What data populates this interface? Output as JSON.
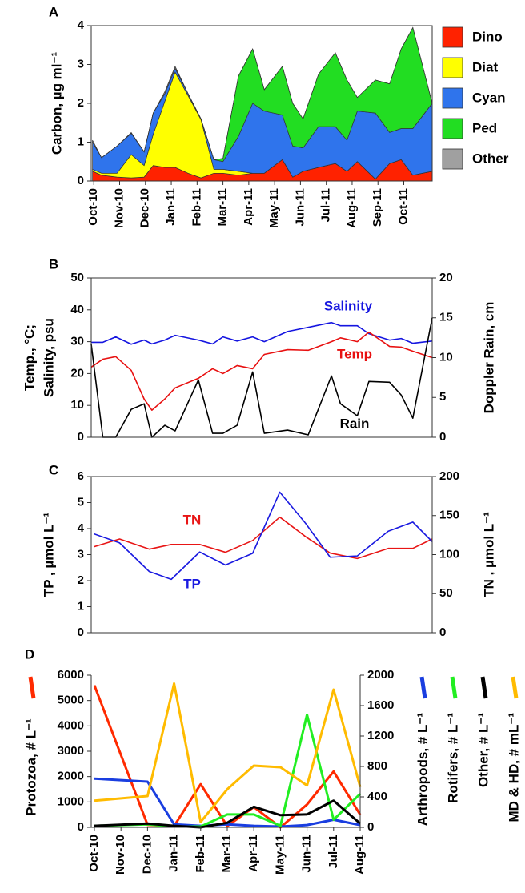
{
  "chart_data": [
    {
      "type": "area",
      "stacked": true,
      "title": "A",
      "y_label": "Carbon, µg ml⁻¹",
      "legend": "right",
      "x": [
        -0.05,
        0.3,
        0.9,
        1.45,
        1.95,
        2.3,
        2.75,
        3.15,
        3.65,
        4.15,
        4.65,
        5.0,
        5.6,
        6.15,
        6.6,
        7.3,
        7.7,
        8.1,
        8.7,
        9.35,
        9.8,
        10.2,
        10.9,
        11.45,
        11.9,
        12.35,
        13.1
      ],
      "xlim": [
        -0.1,
        13.1
      ],
      "xticks": [
        {
          "value": 0,
          "label": "Oct-10"
        },
        {
          "value": 1,
          "label": "Nov-10"
        },
        {
          "value": 2,
          "label": "Dec-10"
        },
        {
          "value": 3,
          "label": "Jan-11"
        },
        {
          "value": 4,
          "label": "Feb-11"
        },
        {
          "value": 5,
          "label": "Mar-11"
        },
        {
          "value": 6,
          "label": "Apr-11"
        },
        {
          "value": 7,
          "label": "May-11"
        },
        {
          "value": 8,
          "label": "Jun-11"
        },
        {
          "value": 9,
          "label": "Jul-11"
        },
        {
          "value": 10,
          "label": "Aug-11"
        },
        {
          "value": 11,
          "label": "Sep-11"
        },
        {
          "value": 12,
          "label": "Oct-11"
        }
      ],
      "ylim": [
        0,
        4
      ],
      "yticks": [
        0,
        1,
        2,
        3,
        4
      ],
      "series": [
        {
          "name": "Dino",
          "color": "#ff2200",
          "values": [
            0.25,
            0.15,
            0.1,
            0.08,
            0.1,
            0.4,
            0.35,
            0.35,
            0.2,
            0.08,
            0.2,
            0.2,
            0.15,
            0.2,
            0.2,
            0.55,
            0.1,
            0.25,
            0.35,
            0.45,
            0.25,
            0.5,
            0.05,
            0.45,
            0.55,
            0.15,
            0.25
          ]
        },
        {
          "name": "Diat",
          "color": "#ffff00",
          "values": [
            0.05,
            0.05,
            0.1,
            0.6,
            0.3,
            0.8,
            1.7,
            2.45,
            2.0,
            1.5,
            0.1,
            0.1,
            0.1,
            0,
            0,
            0,
            0,
            0,
            0,
            0,
            0,
            0,
            0,
            0,
            0,
            0,
            0
          ]
        },
        {
          "name": "Cyan",
          "color": "#2f74ec",
          "values": [
            0.7,
            0.4,
            0.7,
            0.55,
            0.35,
            0.55,
            0.2,
            0.1,
            0.05,
            0.02,
            0.25,
            0.2,
            0.9,
            1.8,
            1.6,
            1.15,
            0.8,
            0.6,
            1.05,
            0.95,
            0.8,
            1.3,
            1.7,
            0.8,
            0.8,
            1.2,
            1.75
          ]
        },
        {
          "name": "Ped",
          "color": "#22dd22",
          "values": [
            0,
            0,
            0,
            0,
            0,
            0,
            0,
            0,
            0,
            0,
            0,
            0.08,
            1.55,
            1.4,
            0.55,
            1.25,
            1.1,
            0.75,
            1.35,
            1.9,
            1.55,
            0.35,
            0.85,
            1.25,
            2.05,
            2.6,
            0
          ]
        },
        {
          "name": "Other",
          "color": "#a0a0a0",
          "values": [
            0.05,
            0,
            0,
            0.02,
            0,
            0,
            0.05,
            0.05,
            0,
            0,
            0,
            0,
            0,
            0,
            0,
            0,
            0,
            0,
            0,
            0,
            0,
            0,
            0,
            0,
            0,
            0,
            0
          ]
        }
      ]
    },
    {
      "type": "line",
      "title": "B",
      "y_label": [
        "Temp., °C;",
        "Salinity, psu"
      ],
      "y2_label": "Doppler Rain, cm",
      "legend": "inline",
      "x": [
        -0.1,
        0.35,
        0.85,
        1.45,
        1.95,
        2.25,
        2.75,
        3.15,
        4.05,
        4.6,
        5.0,
        5.55,
        6.15,
        6.6,
        7.5,
        8.3,
        9.2,
        9.55,
        10.2,
        10.65,
        11.45,
        11.9,
        12.35,
        13.1
      ],
      "xlim": [
        -0.1,
        13.1
      ],
      "ylim": [
        0,
        50
      ],
      "yticks": [
        0,
        10,
        20,
        30,
        40,
        50
      ],
      "y2lim": [
        0,
        20
      ],
      "y2ticks": [
        0,
        5,
        10,
        15,
        20
      ],
      "series": [
        {
          "name": "Salinity",
          "color": "#1515e0",
          "values": [
            29.8,
            29.8,
            31.5,
            29.2,
            30.5,
            29.3,
            30.5,
            32,
            30.5,
            29.3,
            31.5,
            30.2,
            31.5,
            30,
            33.2,
            34.5,
            36,
            35,
            35,
            32.5,
            30.5,
            31,
            29.5,
            30.2
          ]
        },
        {
          "name": "Temp",
          "color": "#e81010",
          "values": [
            22,
            24.5,
            25.3,
            21,
            12,
            8.5,
            12,
            15.5,
            18.5,
            21.5,
            20,
            22.5,
            21.5,
            26,
            27.5,
            27.3,
            30,
            31.2,
            30,
            33,
            28.5,
            28.3,
            27,
            25
          ]
        },
        {
          "name": "Rain",
          "color": "#000000",
          "axis": "y2",
          "values": [
            11.7,
            0,
            0,
            3.5,
            4.2,
            0,
            1.5,
            0.8,
            7.2,
            0.5,
            0.5,
            1.5,
            8.2,
            0.5,
            0.9,
            0.3,
            7.7,
            4.2,
            2.7,
            7,
            6.9,
            5.3,
            2.4,
            15
          ]
        }
      ]
    },
    {
      "type": "line",
      "title": "C",
      "y_label": "TP , µmol L⁻¹",
      "y2_label": "TN , µmol L⁻¹",
      "legend": "inline",
      "x": [
        0,
        1,
        2.15,
        3,
        4.1,
        5.1,
        6.15,
        7.2,
        8.2,
        9.15,
        10.2,
        11.4,
        12.35,
        13.1
      ],
      "xlim": [
        -0.1,
        13.1
      ],
      "ylim": [
        0,
        6
      ],
      "yticks": [
        0,
        1,
        2,
        3,
        4,
        5,
        6
      ],
      "y2lim": [
        0,
        200
      ],
      "y2ticks": [
        0,
        50,
        100,
        150,
        200
      ],
      "series": [
        {
          "name": "TN",
          "color": "#e81515",
          "axis": "y2",
          "values": [
            110,
            120,
            107,
            113,
            113,
            103,
            118,
            148,
            123,
            102,
            95,
            108,
            108,
            120
          ]
        },
        {
          "name": "TP",
          "color": "#1a1ae0",
          "values": [
            3.8,
            3.45,
            2.35,
            2.05,
            3.1,
            2.6,
            3.05,
            5.4,
            4.2,
            2.9,
            2.95,
            3.9,
            4.25,
            3.5
          ]
        }
      ]
    },
    {
      "type": "line",
      "title": "D",
      "legend": "axis",
      "x": [
        0,
        2,
        3,
        4,
        5,
        6,
        7,
        8,
        9,
        10
      ],
      "xlim": [
        -0.12,
        10
      ],
      "xticks": [
        {
          "value": 0,
          "label": "Oct-10"
        },
        {
          "value": 1,
          "label": "Nov-10"
        },
        {
          "value": 2,
          "label": "Dec-10"
        },
        {
          "value": 3,
          "label": "Jan-11"
        },
        {
          "value": 4,
          "label": "Feb-11"
        },
        {
          "value": 5,
          "label": "Mar-11"
        },
        {
          "value": 6,
          "label": "Apr-11"
        },
        {
          "value": 7,
          "label": "May-11"
        },
        {
          "value": 8,
          "label": "Jun-11"
        },
        {
          "value": 9,
          "label": "Jul-11"
        },
        {
          "value": 10,
          "label": "Aug-11"
        }
      ],
      "ylim": [
        0,
        6000
      ],
      "yticks": [
        0,
        1000,
        2000,
        3000,
        4000,
        5000,
        6000
      ],
      "y2lim": [
        0,
        2000
      ],
      "y2ticks": [
        0,
        400,
        800,
        1200,
        1600,
        2000
      ],
      "series": [
        {
          "name": "Protozoa, # L⁻¹",
          "color": "#ff2a00",
          "values": [
            5600,
            100,
            50,
            1700,
            50,
            800,
            0,
            900,
            2200,
            500
          ]
        },
        {
          "name": "Arthropods, # L⁻¹",
          "color": "#1a3ee0",
          "axis": "y2",
          "values": [
            640,
            600,
            40,
            20,
            40,
            20,
            10,
            30,
            100,
            30
          ]
        },
        {
          "name": "Rotifers, # L⁻¹",
          "color": "#22ee22",
          "axis": "y2",
          "values": [
            20,
            40,
            10,
            10,
            170,
            170,
            20,
            1480,
            100,
            440
          ]
        },
        {
          "name": "Other, # L⁻¹",
          "color": "#000000",
          "axis": "y2",
          "values": [
            20,
            50,
            20,
            0,
            60,
            270,
            160,
            170,
            350,
            50
          ]
        },
        {
          "name": "MD & HD, # mL⁻¹",
          "color": "#ffbb00",
          "axis": "y2",
          "values": [
            350,
            410,
            1890,
            70,
            500,
            810,
            790,
            550,
            1810,
            530
          ]
        }
      ]
    }
  ]
}
